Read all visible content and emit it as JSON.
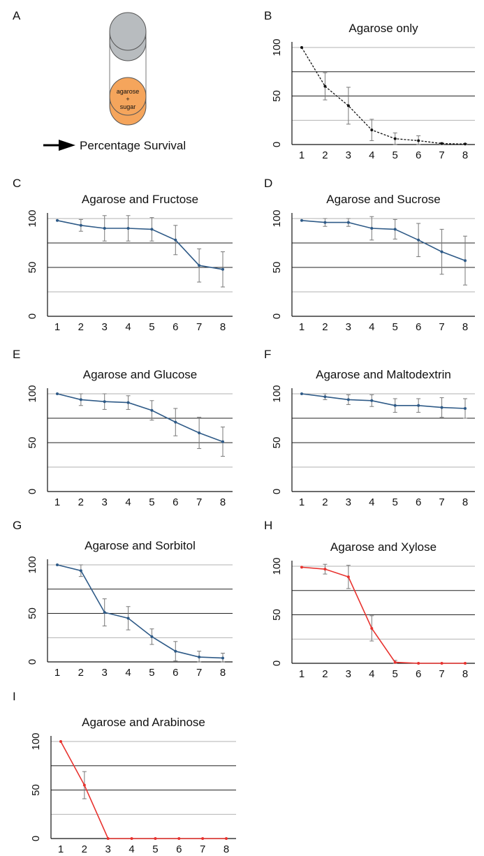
{
  "colors": {
    "black_series": "#111111",
    "blue_series": "#2e5a87",
    "red_series": "#e8322e",
    "grid_major": "#222222",
    "grid_minor": "#999999",
    "errorbar": "#777777",
    "cylinder_top": "#b8bcbf",
    "cylinder_bottom": "#f5a55c"
  },
  "panel_a": {
    "letter": "A",
    "cylinder_line1": "agarose",
    "cylinder_line2": "+",
    "cylinder_line3": "sugar",
    "legend_label": "Percentage Survival",
    "arrow_icon": "right-arrow-icon"
  },
  "chart_data": [
    {
      "letter": "B",
      "type": "line",
      "title": "Agarose only",
      "x": [
        1,
        2,
        3,
        4,
        5,
        6,
        7,
        8
      ],
      "series": [
        {
          "values": [
            100,
            60,
            40,
            15,
            6,
            4,
            1,
            0.5
          ],
          "error": [
            0,
            14,
            19,
            11,
            6,
            5,
            1,
            0.5
          ]
        }
      ],
      "color": "black_series",
      "line_style": "dashed",
      "ylim": [
        0,
        100
      ],
      "yticks": [
        0,
        50,
        100
      ],
      "gridlines": [
        25,
        50,
        75,
        100
      ],
      "xlabel": "",
      "ylabel": ""
    },
    {
      "letter": "C",
      "type": "line",
      "title": "Agarose and Fructose",
      "x": [
        1,
        2,
        3,
        4,
        5,
        6,
        7,
        8
      ],
      "series": [
        {
          "values": [
            98,
            93,
            90,
            90,
            89,
            78,
            52,
            48
          ],
          "error": [
            0,
            6,
            13,
            13,
            12,
            15,
            17,
            18
          ]
        }
      ],
      "color": "blue_series",
      "line_style": "solid",
      "ylim": [
        0,
        100
      ],
      "yticks": [
        0,
        50,
        100
      ],
      "gridlines": [
        25,
        50,
        75,
        100
      ],
      "xlabel": "",
      "ylabel": ""
    },
    {
      "letter": "D",
      "type": "line",
      "title": "Agarose and Sucrose",
      "x": [
        1,
        2,
        3,
        4,
        5,
        6,
        7,
        8
      ],
      "series": [
        {
          "values": [
            98,
            96,
            96,
            90,
            89,
            78,
            66,
            57
          ],
          "error": [
            0,
            4,
            4,
            12,
            10,
            17,
            23,
            25
          ]
        }
      ],
      "color": "blue_series",
      "line_style": "solid",
      "ylim": [
        0,
        100
      ],
      "yticks": [
        0,
        50,
        100
      ],
      "gridlines": [
        25,
        50,
        75,
        100
      ],
      "xlabel": "",
      "ylabel": ""
    },
    {
      "letter": "E",
      "type": "line",
      "title": "Agarose and Glucose",
      "x": [
        1,
        2,
        3,
        4,
        5,
        6,
        7,
        8
      ],
      "series": [
        {
          "values": [
            100,
            94,
            92,
            91,
            83,
            71,
            60,
            51
          ],
          "error": [
            0,
            6,
            8,
            7,
            10,
            14,
            16,
            15
          ]
        }
      ],
      "color": "blue_series",
      "line_style": "solid",
      "ylim": [
        0,
        100
      ],
      "yticks": [
        0,
        50,
        100
      ],
      "gridlines": [
        25,
        50,
        75,
        100
      ],
      "xlabel": "",
      "ylabel": ""
    },
    {
      "letter": "F",
      "type": "line",
      "title": "Agarose and Maltodextrin",
      "x": [
        1,
        2,
        3,
        4,
        5,
        6,
        7,
        8
      ],
      "series": [
        {
          "values": [
            100,
            97,
            94,
            93,
            88,
            88,
            86,
            85
          ],
          "error": [
            0,
            3,
            5,
            6,
            7,
            7,
            10,
            10
          ]
        }
      ],
      "color": "blue_series",
      "line_style": "solid",
      "ylim": [
        0,
        100
      ],
      "yticks": [
        0,
        50,
        100
      ],
      "gridlines": [
        25,
        50,
        75,
        100
      ],
      "xlabel": "",
      "ylabel": ""
    },
    {
      "letter": "G",
      "type": "line",
      "title": "Agarose and Sorbitol",
      "x": [
        1,
        2,
        3,
        4,
        5,
        6,
        7,
        8
      ],
      "series": [
        {
          "values": [
            100,
            94,
            51,
            45,
            26,
            11,
            5,
            4
          ],
          "error": [
            0,
            6,
            14,
            12,
            8,
            10,
            6,
            5
          ]
        }
      ],
      "color": "blue_series",
      "line_style": "solid",
      "ylim": [
        0,
        100
      ],
      "yticks": [
        0,
        50,
        100
      ],
      "gridlines": [
        25,
        50,
        75,
        100
      ],
      "xlabel": "",
      "ylabel": ""
    },
    {
      "letter": "H",
      "type": "line",
      "title": "Agarose and Xylose",
      "x": [
        1,
        2,
        3,
        4,
        5,
        6,
        7,
        8
      ],
      "series": [
        {
          "values": [
            99,
            97,
            89,
            36,
            1,
            0,
            0,
            0
          ],
          "error": [
            0,
            5,
            12,
            13,
            2,
            0,
            0,
            0
          ]
        }
      ],
      "color": "red_series",
      "line_style": "solid",
      "ylim": [
        0,
        100
      ],
      "yticks": [
        0,
        50,
        100
      ],
      "gridlines": [
        25,
        50,
        75,
        100
      ],
      "xlabel": "",
      "ylabel": ""
    },
    {
      "letter": "I",
      "type": "line",
      "title": "Agarose and Arabinose",
      "x": [
        1,
        2,
        3,
        4,
        5,
        6,
        7,
        8
      ],
      "series": [
        {
          "values": [
            100,
            55,
            0,
            0,
            0,
            0,
            0,
            0
          ],
          "error": [
            0,
            14,
            0,
            0,
            0,
            0,
            0,
            0
          ]
        }
      ],
      "color": "red_series",
      "line_style": "solid",
      "ylim": [
        0,
        100
      ],
      "yticks": [
        0,
        50,
        100
      ],
      "gridlines": [
        25,
        50,
        75,
        100
      ],
      "xlabel": "",
      "ylabel": ""
    }
  ]
}
